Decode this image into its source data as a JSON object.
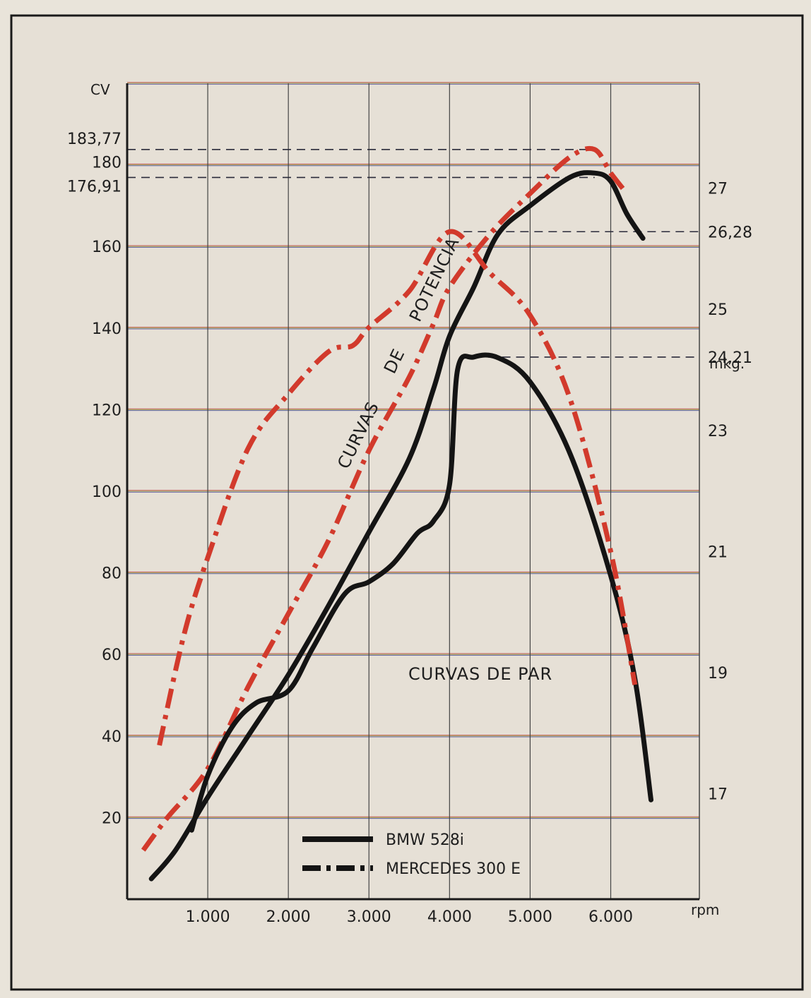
{
  "chart_data": {
    "type": "line",
    "left_axis_unit": "CV",
    "right_axis_unit": "mkg.",
    "x_unit": "rpm",
    "x_ticks": [
      "1.000",
      "2.000",
      "3.000",
      "4.000",
      "5.000",
      "6.000"
    ],
    "y_left_ticks": [
      "20",
      "40",
      "60",
      "80",
      "100",
      "120",
      "140",
      "160"
    ],
    "y_left_special": [
      "183,77",
      "180",
      "176,91"
    ],
    "y_right_ticks": [
      "17",
      "19",
      "21",
      "23",
      "25",
      "27"
    ],
    "y_right_special": [
      "24,21",
      "26,28"
    ],
    "annotation_power": "CURVAS DE POTENCIA",
    "annotation_power_words": [
      "CURVAS",
      "DE",
      "POTENCIA"
    ],
    "annotation_torque": "CURVAS DE PAR",
    "xlim": [
      0,
      7100
    ],
    "ylim_left": [
      0,
      200
    ],
    "ylim_right": [
      15.26,
      28.73
    ],
    "grid": true,
    "legend_position": "bottom-center",
    "colors": {
      "bmw": "#141414",
      "mercedes": "#d23a2c",
      "grid_vertical": "#444444",
      "grid_horizontal": [
        "#b83a3a",
        "#9aa43a",
        "#3c3c9a"
      ]
    },
    "series": [
      {
        "name": "BMW 528i",
        "style": "solid",
        "color": "#141414",
        "kind": "power",
        "axis": "left",
        "x": [
          300,
          600,
          1000,
          1500,
          2000,
          2500,
          3000,
          3500,
          3800,
          4000,
          4300,
          4600,
          5000,
          5500,
          5800,
          6000,
          6200,
          6400
        ],
        "y": [
          5,
          12,
          25,
          40,
          55,
          72,
          90,
          108,
          125,
          138,
          150,
          163,
          170,
          177,
          178,
          176,
          168,
          162
        ]
      },
      {
        "name": "MERCEDES 300 E",
        "style": "dash-dot",
        "color": "#d23a2c",
        "kind": "power",
        "axis": "left",
        "x": [
          200,
          500,
          1000,
          1500,
          2000,
          2500,
          3000,
          3500,
          3800,
          4000,
          4500,
          5000,
          5500,
          5800,
          6000,
          6200
        ],
        "y": [
          12,
          20,
          32,
          52,
          70,
          88,
          110,
          128,
          141,
          150,
          163,
          173,
          182,
          183.77,
          178,
          173
        ]
      },
      {
        "name": "BMW 528i",
        "style": "solid",
        "color": "#141414",
        "kind": "torque",
        "axis": "right",
        "x": [
          800,
          1000,
          1300,
          1600,
          2000,
          2300,
          2700,
          3000,
          3300,
          3600,
          3800,
          4000,
          4100,
          4300,
          4600,
          5000,
          5500,
          6000,
          6300,
          6500
        ],
        "y": [
          16.4,
          17.3,
          18.1,
          18.5,
          18.7,
          19.4,
          20.3,
          20.5,
          20.8,
          21.3,
          21.5,
          22.1,
          24.0,
          24.21,
          24.2,
          23.8,
          22.6,
          20.6,
          18.9,
          16.9
        ]
      },
      {
        "name": "MERCEDES 300 E",
        "style": "dash-dot",
        "color": "#d23a2c",
        "kind": "torque",
        "axis": "right",
        "x": [
          400,
          700,
          1000,
          1500,
          2000,
          2500,
          2800,
          3000,
          3500,
          4000,
          4500,
          5000,
          5500,
          6000,
          6300
        ],
        "y": [
          17.8,
          19.6,
          20.9,
          22.7,
          23.6,
          24.3,
          24.4,
          24.7,
          25.3,
          26.28,
          25.6,
          24.9,
          23.5,
          21.0,
          18.8
        ]
      }
    ]
  }
}
